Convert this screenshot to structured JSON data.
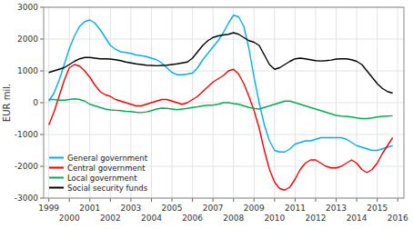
{
  "chart_data": {
    "type": "line",
    "y_label": "EUR mil.",
    "x": [
      1999.0,
      1999.25,
      1999.5,
      1999.75,
      2000.0,
      2000.25,
      2000.5,
      2000.75,
      2001.0,
      2001.25,
      2001.5,
      2001.75,
      2002.0,
      2002.25,
      2002.5,
      2002.75,
      2003.0,
      2003.25,
      2003.5,
      2003.75,
      2004.0,
      2004.25,
      2004.5,
      2004.75,
      2005.0,
      2005.25,
      2005.5,
      2005.75,
      2006.0,
      2006.25,
      2006.5,
      2006.75,
      2007.0,
      2007.25,
      2007.5,
      2007.75,
      2008.0,
      2008.25,
      2008.5,
      2008.75,
      2009.0,
      2009.25,
      2009.5,
      2009.75,
      2010.0,
      2010.25,
      2010.5,
      2010.75,
      2011.0,
      2011.25,
      2011.5,
      2011.75,
      2012.0,
      2012.25,
      2012.5,
      2012.75,
      2013.0,
      2013.25,
      2013.5,
      2013.75,
      2014.0,
      2014.25,
      2014.5,
      2014.75,
      2015.0,
      2015.25,
      2015.5,
      2015.75
    ],
    "series": [
      {
        "name": "General government",
        "color": "#00b0f0",
        "values": [
          50,
          300,
          700,
          1200,
          1700,
          2100,
          2400,
          2550,
          2600,
          2500,
          2300,
          2050,
          1800,
          1680,
          1600,
          1580,
          1550,
          1500,
          1480,
          1450,
          1400,
          1350,
          1250,
          1100,
          950,
          880,
          880,
          900,
          930,
          1100,
          1350,
          1550,
          1750,
          1950,
          2200,
          2500,
          2750,
          2700,
          2400,
          1700,
          800,
          0,
          -700,
          -1200,
          -1500,
          -1550,
          -1550,
          -1450,
          -1300,
          -1250,
          -1200,
          -1200,
          -1150,
          -1100,
          -1100,
          -1100,
          -1100,
          -1100,
          -1150,
          -1250,
          -1350,
          -1400,
          -1450,
          -1500,
          -1500,
          -1450,
          -1400,
          -1350
        ]
      },
      {
        "name": "Central government",
        "color": "#ff0000",
        "values": [
          -700,
          -300,
          200,
          700,
          1100,
          1200,
          1150,
          1000,
          800,
          550,
          350,
          250,
          200,
          100,
          50,
          0,
          -50,
          -100,
          -100,
          -50,
          0,
          50,
          100,
          100,
          50,
          0,
          -50,
          0,
          100,
          200,
          350,
          500,
          650,
          750,
          850,
          1000,
          1050,
          900,
          600,
          200,
          -250,
          -800,
          -1500,
          -2100,
          -2500,
          -2700,
          -2750,
          -2650,
          -2400,
          -2100,
          -1900,
          -1800,
          -1800,
          -1900,
          -2000,
          -2050,
          -2050,
          -2000,
          -1900,
          -1800,
          -1900,
          -2100,
          -2200,
          -2100,
          -1900,
          -1600,
          -1350,
          -1100
        ]
      },
      {
        "name": "Local government",
        "color": "#00b050",
        "values": [
          100,
          100,
          80,
          80,
          100,
          120,
          100,
          50,
          -50,
          -100,
          -150,
          -200,
          -230,
          -240,
          -250,
          -270,
          -280,
          -300,
          -310,
          -290,
          -250,
          -200,
          -170,
          -180,
          -200,
          -220,
          -200,
          -180,
          -150,
          -130,
          -100,
          -80,
          -80,
          -50,
          0,
          0,
          -30,
          -50,
          -100,
          -150,
          -180,
          -200,
          -150,
          -100,
          -50,
          0,
          50,
          50,
          0,
          -50,
          -100,
          -150,
          -200,
          -250,
          -300,
          -350,
          -400,
          -420,
          -430,
          -450,
          -480,
          -500,
          -500,
          -480,
          -450,
          -430,
          -420,
          -410
        ]
      },
      {
        "name": "Social security funds",
        "color": "#000000",
        "values": [
          950,
          1000,
          1050,
          1100,
          1200,
          1300,
          1380,
          1420,
          1420,
          1400,
          1380,
          1380,
          1370,
          1350,
          1320,
          1280,
          1250,
          1220,
          1200,
          1180,
          1170,
          1160,
          1170,
          1180,
          1200,
          1220,
          1250,
          1280,
          1400,
          1600,
          1800,
          1950,
          2050,
          2100,
          2130,
          2150,
          2200,
          2150,
          2050,
          1950,
          1900,
          1800,
          1500,
          1200,
          1050,
          1100,
          1200,
          1300,
          1380,
          1400,
          1380,
          1350,
          1320,
          1310,
          1320,
          1340,
          1370,
          1380,
          1380,
          1350,
          1300,
          1200,
          1000,
          800,
          600,
          450,
          350,
          300
        ]
      }
    ],
    "xlim": [
      1998.75,
      2016.3
    ],
    "xticks": [
      1999,
      2000,
      2001,
      2002,
      2003,
      2004,
      2005,
      2006,
      2007,
      2008,
      2009,
      2010,
      2011,
      2012,
      2013,
      2014,
      2015,
      2016
    ],
    "ylim": [
      -3000,
      3000
    ],
    "yticks": [
      -3000,
      -2000,
      -1000,
      0,
      1000,
      2000,
      3000
    ],
    "grid": true,
    "legend": "lower left"
  }
}
